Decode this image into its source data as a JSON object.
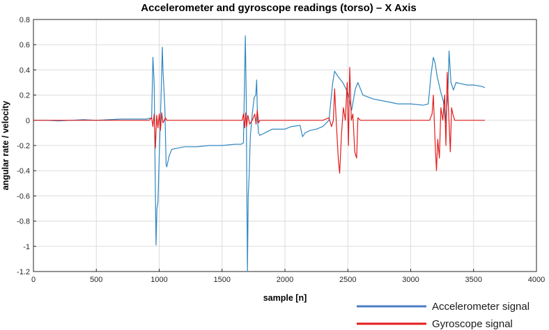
{
  "chart_data": {
    "type": "line",
    "title": "Accelerometer and gyroscope readings (torso) – X Axis",
    "xlabel": "sample [n]",
    "ylabel": "angular rate / velocity",
    "xlim": [
      0,
      4000
    ],
    "ylim": [
      -1.2,
      0.8
    ],
    "x_ticks": [
      0,
      500,
      1000,
      1500,
      2000,
      2500,
      3000,
      3500,
      4000
    ],
    "x_tick_labels": [
      "0",
      "500",
      "1000",
      "1500",
      "2000",
      "2500",
      "3000",
      "3500",
      "4000"
    ],
    "y_ticks": [
      -1.2,
      -1,
      -0.8,
      -0.6,
      -0.4,
      -0.2,
      0,
      0.2,
      0.4,
      0.6,
      0.8
    ],
    "y_tick_labels": [
      "-1.2",
      "-1",
      "-0.8",
      "-0.6",
      "-0.4",
      "-0.2",
      "0",
      "0.2",
      "0.4",
      "0.6",
      "0.8"
    ],
    "grid": true,
    "legend_position": "bottom-right, below plot",
    "series": [
      {
        "name": "Accelerometer signal",
        "color": "#2e86c1",
        "points": [
          [
            0,
            0.0
          ],
          [
            100,
            0.0
          ],
          [
            200,
            -0.005
          ],
          [
            300,
            0.0
          ],
          [
            400,
            0.005
          ],
          [
            500,
            0.0
          ],
          [
            600,
            0.005
          ],
          [
            700,
            0.01
          ],
          [
            800,
            0.01
          ],
          [
            900,
            0.01
          ],
          [
            940,
            0.02
          ],
          [
            950,
            0.5
          ],
          [
            960,
            0.3
          ],
          [
            970,
            -0.6
          ],
          [
            975,
            -0.99
          ],
          [
            982,
            -0.7
          ],
          [
            990,
            -0.65
          ],
          [
            1000,
            -0.3
          ],
          [
            1015,
            0.2
          ],
          [
            1025,
            0.58
          ],
          [
            1030,
            0.4
          ],
          [
            1045,
            0.1
          ],
          [
            1055,
            -0.35
          ],
          [
            1060,
            -0.37
          ],
          [
            1080,
            -0.28
          ],
          [
            1100,
            -0.23
          ],
          [
            1200,
            -0.21
          ],
          [
            1300,
            -0.21
          ],
          [
            1400,
            -0.2
          ],
          [
            1500,
            -0.2
          ],
          [
            1600,
            -0.19
          ],
          [
            1650,
            -0.19
          ],
          [
            1670,
            -0.18
          ],
          [
            1685,
            0.67
          ],
          [
            1692,
            0.2
          ],
          [
            1698,
            -0.7
          ],
          [
            1702,
            -1.2
          ],
          [
            1708,
            -0.6
          ],
          [
            1715,
            -0.45
          ],
          [
            1725,
            -0.12
          ],
          [
            1740,
            0.05
          ],
          [
            1755,
            0.18
          ],
          [
            1768,
            0.2
          ],
          [
            1775,
            0.32
          ],
          [
            1782,
            0.0
          ],
          [
            1790,
            -0.1
          ],
          [
            1800,
            -0.12
          ],
          [
            1900,
            -0.07
          ],
          [
            2000,
            -0.07
          ],
          [
            2050,
            -0.05
          ],
          [
            2120,
            -0.04
          ],
          [
            2140,
            -0.13
          ],
          [
            2160,
            -0.1
          ],
          [
            2200,
            -0.08
          ],
          [
            2250,
            -0.07
          ],
          [
            2300,
            -0.05
          ],
          [
            2350,
            0.0
          ],
          [
            2380,
            0.3
          ],
          [
            2395,
            0.39
          ],
          [
            2420,
            0.35
          ],
          [
            2460,
            0.3
          ],
          [
            2500,
            0.22
          ],
          [
            2530,
            0.08
          ],
          [
            2560,
            0.25
          ],
          [
            2580,
            0.3
          ],
          [
            2620,
            0.2
          ],
          [
            2700,
            0.17
          ],
          [
            2800,
            0.15
          ],
          [
            2900,
            0.13
          ],
          [
            3000,
            0.13
          ],
          [
            3100,
            0.12
          ],
          [
            3140,
            0.13
          ],
          [
            3160,
            0.35
          ],
          [
            3180,
            0.5
          ],
          [
            3195,
            0.45
          ],
          [
            3210,
            0.35
          ],
          [
            3240,
            0.22
          ],
          [
            3260,
            0.15
          ],
          [
            3275,
            -0.02
          ],
          [
            3295,
            0.2
          ],
          [
            3305,
            0.55
          ],
          [
            3320,
            0.3
          ],
          [
            3340,
            0.24
          ],
          [
            3360,
            0.3
          ],
          [
            3400,
            0.29
          ],
          [
            3450,
            0.28
          ],
          [
            3500,
            0.28
          ],
          [
            3560,
            0.27
          ],
          [
            3590,
            0.26
          ]
        ]
      },
      {
        "name": "Gyroscope signal",
        "color": "#e31b1b",
        "points": [
          [
            0,
            0.0
          ],
          [
            200,
            0.0
          ],
          [
            400,
            0.0
          ],
          [
            600,
            0.0
          ],
          [
            800,
            0.0
          ],
          [
            920,
            0.0
          ],
          [
            940,
            0.02
          ],
          [
            950,
            -0.05
          ],
          [
            960,
            0.05
          ],
          [
            970,
            -0.22
          ],
          [
            980,
            0.04
          ],
          [
            990,
            -0.06
          ],
          [
            1000,
            0.05
          ],
          [
            1010,
            -0.08
          ],
          [
            1020,
            0.06
          ],
          [
            1030,
            -0.02
          ],
          [
            1050,
            0.02
          ],
          [
            1060,
            0.0
          ],
          [
            1200,
            0.0
          ],
          [
            1400,
            0.0
          ],
          [
            1600,
            0.0
          ],
          [
            1660,
            0.0
          ],
          [
            1670,
            0.05
          ],
          [
            1680,
            -0.06
          ],
          [
            1688,
            0.06
          ],
          [
            1695,
            -0.05
          ],
          [
            1705,
            0.04
          ],
          [
            1720,
            -0.03
          ],
          [
            1740,
            0.0
          ],
          [
            1760,
            0.05
          ],
          [
            1770,
            -0.03
          ],
          [
            1780,
            0.08
          ],
          [
            1790,
            -0.02
          ],
          [
            1800,
            0.0
          ],
          [
            2000,
            0.0
          ],
          [
            2200,
            0.0
          ],
          [
            2300,
            0.0
          ],
          [
            2350,
            0.02
          ],
          [
            2370,
            -0.05
          ],
          [
            2385,
            0.0
          ],
          [
            2395,
            0.25
          ],
          [
            2410,
            -0.05
          ],
          [
            2425,
            -0.32
          ],
          [
            2435,
            -0.42
          ],
          [
            2450,
            -0.1
          ],
          [
            2465,
            0.1
          ],
          [
            2480,
            0.0
          ],
          [
            2495,
            0.3
          ],
          [
            2505,
            -0.2
          ],
          [
            2515,
            0.42
          ],
          [
            2528,
            0.0
          ],
          [
            2540,
            0.05
          ],
          [
            2555,
            -0.25
          ],
          [
            2570,
            -0.3
          ],
          [
            2580,
            0.02
          ],
          [
            2600,
            0.0
          ],
          [
            2800,
            0.0
          ],
          [
            3000,
            0.0
          ],
          [
            3100,
            0.0
          ],
          [
            3150,
            0.0
          ],
          [
            3170,
            0.05
          ],
          [
            3180,
            0.2
          ],
          [
            3195,
            -0.2
          ],
          [
            3205,
            -0.4
          ],
          [
            3215,
            -0.15
          ],
          [
            3228,
            -0.3
          ],
          [
            3240,
            0.1
          ],
          [
            3255,
            0.0
          ],
          [
            3270,
            0.2
          ],
          [
            3280,
            -0.2
          ],
          [
            3290,
            0.38
          ],
          [
            3300,
            0.1
          ],
          [
            3315,
            -0.25
          ],
          [
            3325,
            0.1
          ],
          [
            3335,
            0.05
          ],
          [
            3350,
            0.0
          ],
          [
            3400,
            0.0
          ],
          [
            3500,
            0.0
          ],
          [
            3590,
            0.0
          ]
        ]
      }
    ]
  }
}
